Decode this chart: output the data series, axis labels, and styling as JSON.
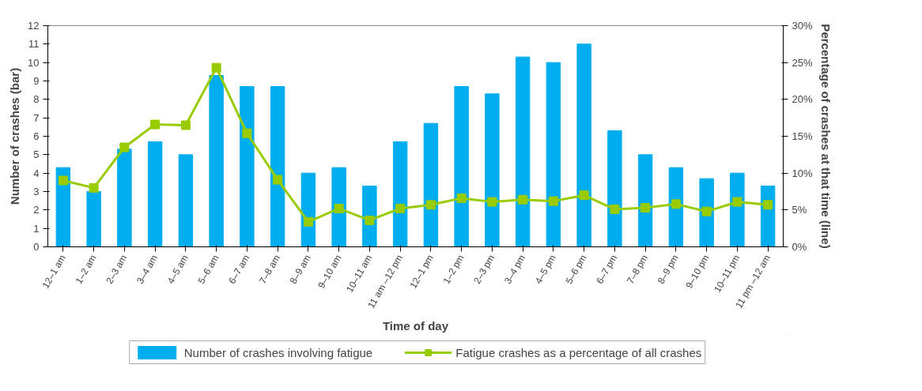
{
  "chart_data": {
    "type": "bar",
    "xlabel": "Time of day",
    "ylabel": "Number of crashes (bar)",
    "y2label": "Percentage of crashes at that time (line)",
    "categories": [
      "12–1 am",
      "1–2 am",
      "2–3 am",
      "3–4 am",
      "4–5 am",
      "5–6 am",
      "6–7 am",
      "7–8 am",
      "8–9 am",
      "9–10 am",
      "10–11 am",
      "11 am –12 pm",
      "12–1 pm",
      "1–2 pm",
      "2–3 pm",
      "3–4 pm",
      "4–5 pm",
      "5–6 pm",
      "6–7 pm",
      "7–8 pm",
      "8–9 pm",
      "9–10 pm",
      "10–11 pm",
      "11 pm –12 am"
    ],
    "series": [
      {
        "name": "Number of crashes involving fatigue",
        "type": "bar",
        "color": "#00aeef",
        "values": [
          4.3,
          3.0,
          5.3,
          5.7,
          5.0,
          9.3,
          8.7,
          8.7,
          4.0,
          4.3,
          3.3,
          5.7,
          6.7,
          8.7,
          8.3,
          10.3,
          10.0,
          11.0,
          6.3,
          5.0,
          4.3,
          3.7,
          4.0,
          3.3
        ]
      },
      {
        "name": "Fatigue crashes as a percentage of all crashes",
        "type": "line",
        "axis": "y2",
        "color": "#99cc00",
        "marker": "square",
        "values": [
          9.0,
          8.0,
          13.5,
          16.6,
          16.5,
          24.3,
          15.4,
          9.1,
          3.4,
          5.2,
          3.6,
          5.2,
          5.7,
          6.6,
          6.1,
          6.4,
          6.2,
          7.0,
          5.1,
          5.3,
          5.8,
          4.8,
          6.1,
          5.7
        ]
      }
    ],
    "ylim": [
      0,
      12
    ],
    "yticks": [
      0,
      1,
      2,
      3,
      4,
      5,
      6,
      7,
      8,
      9,
      10,
      11,
      12
    ],
    "y2lim": [
      0,
      30
    ],
    "y2ticks": [
      {
        "value": 0,
        "label": "0%"
      },
      {
        "value": 5,
        "label": "5%"
      },
      {
        "value": 10,
        "label": "10%"
      },
      {
        "value": 15,
        "label": "15%"
      },
      {
        "value": 20,
        "label": "20%"
      },
      {
        "value": 25,
        "label": "25%"
      },
      {
        "value": 30,
        "label": "30%"
      }
    ],
    "grid": false,
    "legend": "bottom"
  }
}
